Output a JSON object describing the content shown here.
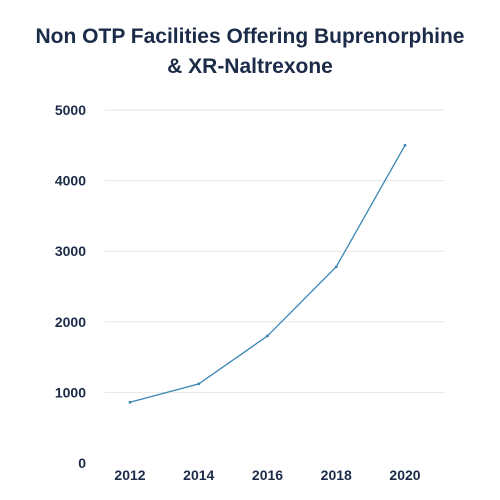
{
  "chart_data": {
    "type": "line",
    "title_line1": "Non OTP Facilities Offering Buprenorphine",
    "title_line2": "& XR-Naltrexone",
    "xlabel": "",
    "ylabel": "",
    "x": [
      2012,
      2014,
      2016,
      2018,
      2020
    ],
    "y": [
      860,
      1120,
      1800,
      2780,
      4500
    ],
    "x_ticks": [
      "2012",
      "2014",
      "2016",
      "2018",
      "2020"
    ],
    "y_ticks": [
      "0",
      "1000",
      "2000",
      "3000",
      "4000",
      "5000"
    ],
    "ylim": [
      0,
      5000
    ],
    "xlim": [
      2012,
      2020
    ],
    "grid": "horizontal",
    "line_color": "#3b86b5",
    "grid_color": "#e6e6e6",
    "text_color": "#1b2b48"
  }
}
